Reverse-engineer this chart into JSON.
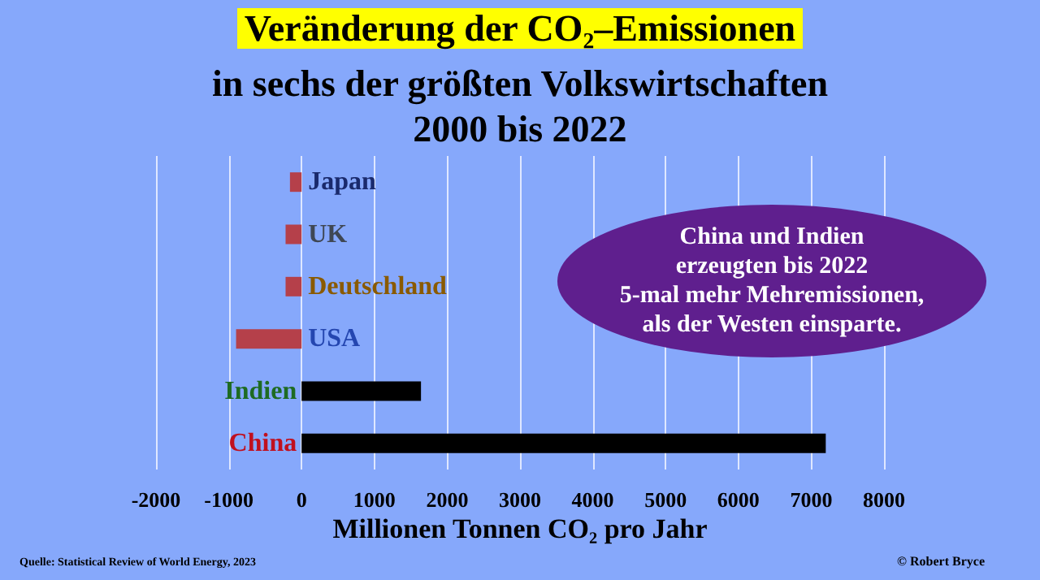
{
  "chart_data": {
    "type": "bar",
    "orientation": "horizontal",
    "title": "Veränderung der CO₂–Emissionen",
    "subtitle": "in sechs der größten Volkswirtschaften\n2000 bis 2022",
    "categories": [
      "Japan",
      "UK",
      "Deutschland",
      "USA",
      "Indien",
      "China"
    ],
    "values": [
      -160,
      -220,
      -220,
      -900,
      1640,
      7200
    ],
    "colors": [
      "#b5404a",
      "#b5404a",
      "#b5404a",
      "#b5404a",
      "#000000",
      "#000000"
    ],
    "xlim": [
      -2000,
      8000
    ],
    "xticks": [
      -2000,
      -1000,
      0,
      1000,
      2000,
      3000,
      4000,
      5000,
      6000,
      7000,
      8000
    ],
    "xlabel": "Millionen Tonnen CO₂ pro Jahr",
    "grid": "x",
    "annotations": [
      "China und Indien\nerzeugten bis 2022\n5-mal mehr Mehremissionen,\nals der Westen einsparte.",
      "Quelle: Statistical Review of World Energy, 2023",
      "© Robert Bryce"
    ]
  }
}
